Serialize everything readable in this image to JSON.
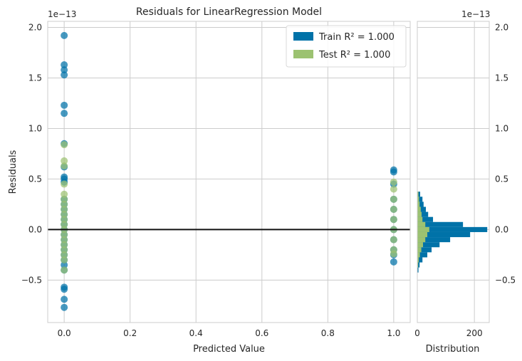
{
  "chart_data": [
    {
      "type": "scatter",
      "title": "Residuals for LinearRegression Model",
      "xlabel": "Predicted Value",
      "ylabel": "Residuals",
      "xlim": [
        -0.05,
        1.05
      ],
      "ylim": [
        -0.92,
        2.06
      ],
      "offset_label": "1e−13",
      "x_ticks": [
        0.0,
        0.2,
        0.4,
        0.6,
        0.8,
        1.0
      ],
      "x_tick_labels": [
        "0.0",
        "0.2",
        "0.4",
        "0.6",
        "0.8",
        "1.0"
      ],
      "y_ticks": [
        -0.5,
        0.0,
        0.5,
        1.0,
        1.5,
        2.0
      ],
      "y_tick_labels": [
        "−0.5",
        "0.0",
        "0.5",
        "1.0",
        "1.5",
        "2.0"
      ],
      "grid": true,
      "legend_position": "top-right",
      "legend": [
        {
          "label": "Train R² = 1.000",
          "color": "#0072a8"
        },
        {
          "label": "Test R² = 1.000",
          "color": "#9cc271"
        }
      ],
      "hline_y": 0,
      "series": [
        {
          "name": "Train",
          "color": "#0072a8",
          "clusters": [
            {
              "x": 0,
              "y": [
                1.92,
                1.63,
                1.58,
                1.53,
                1.23,
                1.15,
                0.85,
                0.62,
                0.52,
                0.5,
                0.47,
                0.3,
                0.25,
                0.2,
                0.15,
                0.1,
                0.05,
                0.0,
                -0.05,
                -0.1,
                -0.15,
                -0.2,
                -0.25,
                -0.3,
                -0.35,
                -0.4,
                -0.57,
                -0.59,
                -0.69,
                -0.77
              ]
            },
            {
              "x": 1,
              "y": [
                0.59,
                0.57,
                0.45,
                0.3,
                0.2,
                0.1,
                0.0,
                -0.1,
                -0.2,
                -0.25,
                -0.32
              ]
            }
          ]
        },
        {
          "name": "Test",
          "color": "#9cc271",
          "clusters": [
            {
              "x": 0,
              "y": [
                0.84,
                0.68,
                0.63,
                0.45,
                0.35,
                0.3,
                0.25,
                0.2,
                0.15,
                0.1,
                0.05,
                0.0,
                -0.05,
                -0.1,
                -0.15,
                -0.2,
                -0.25,
                -0.3,
                -0.4
              ]
            },
            {
              "x": 1,
              "y": [
                0.47,
                0.4,
                0.3,
                0.2,
                0.1,
                0.0,
                -0.1,
                -0.2,
                -0.24
              ]
            }
          ]
        }
      ]
    },
    {
      "type": "bar",
      "orientation": "horizontal",
      "xlabel": "Distribution",
      "xlim": [
        0,
        252
      ],
      "x_ticks": [
        0,
        200
      ],
      "x_tick_labels": [
        "0",
        "200"
      ],
      "ylim": [
        -0.92,
        2.06
      ],
      "y_ticks": [
        -0.5,
        0.0,
        0.5,
        1.0,
        1.5,
        2.0
      ],
      "y_tick_labels": [
        "−0.5",
        "0.0",
        "0.5",
        "1.0",
        "1.5",
        "2.0"
      ],
      "offset_label": "1e−13",
      "grid": true,
      "bin_width": 0.05,
      "series": [
        {
          "name": "Train",
          "color": "#0072a8",
          "bins": [
            {
              "y": 0.35,
              "count": 10
            },
            {
              "y": 0.3,
              "count": 18
            },
            {
              "y": 0.25,
              "count": 22
            },
            {
              "y": 0.2,
              "count": 30
            },
            {
              "y": 0.15,
              "count": 38
            },
            {
              "y": 0.1,
              "count": 55
            },
            {
              "y": 0.05,
              "count": 160
            },
            {
              "y": 0.0,
              "count": 245
            },
            {
              "y": -0.05,
              "count": 185
            },
            {
              "y": -0.1,
              "count": 115
            },
            {
              "y": -0.15,
              "count": 78
            },
            {
              "y": -0.2,
              "count": 50
            },
            {
              "y": -0.25,
              "count": 35
            },
            {
              "y": -0.3,
              "count": 18
            },
            {
              "y": -0.35,
              "count": 8
            },
            {
              "y": -0.4,
              "count": 4
            }
          ]
        },
        {
          "name": "Test",
          "color": "#9cc271",
          "bins": [
            {
              "y": 0.35,
              "count": 4
            },
            {
              "y": 0.3,
              "count": 6
            },
            {
              "y": 0.25,
              "count": 8
            },
            {
              "y": 0.2,
              "count": 12
            },
            {
              "y": 0.15,
              "count": 15
            },
            {
              "y": 0.1,
              "count": 18
            },
            {
              "y": 0.05,
              "count": 28
            },
            {
              "y": 0.0,
              "count": 42
            },
            {
              "y": -0.05,
              "count": 35
            },
            {
              "y": -0.1,
              "count": 28
            },
            {
              "y": -0.15,
              "count": 20
            },
            {
              "y": -0.2,
              "count": 14
            },
            {
              "y": -0.25,
              "count": 9
            },
            {
              "y": -0.3,
              "count": 5
            },
            {
              "y": -0.35,
              "count": 3
            }
          ]
        }
      ]
    }
  ]
}
